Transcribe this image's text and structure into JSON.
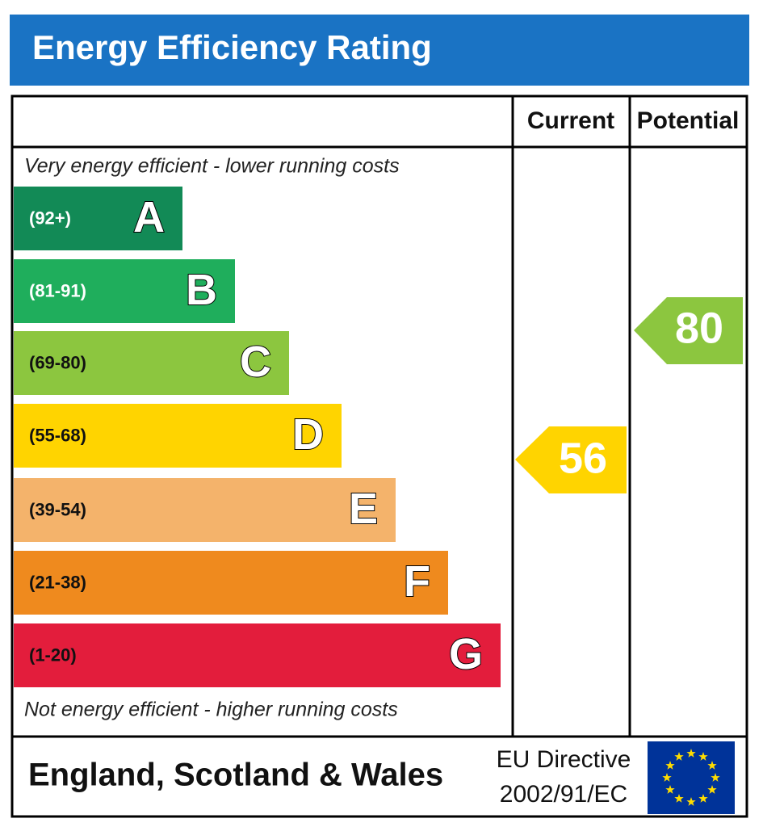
{
  "title": "Energy Efficiency Rating",
  "columns": [
    "Current",
    "Potential"
  ],
  "top_note": "Very energy efficient - lower running costs",
  "bottom_note": "Not energy efficient - higher running costs",
  "bands": [
    {
      "range": "(92+)",
      "letter": "A",
      "color": "#128a56"
    },
    {
      "range": "(81-91)",
      "letter": "B",
      "color": "#1fae5c"
    },
    {
      "range": "(69-80)",
      "letter": "C",
      "color": "#8cc63f"
    },
    {
      "range": "(55-68)",
      "letter": "D",
      "color": "#ffd400"
    },
    {
      "range": "(39-54)",
      "letter": "E",
      "color": "#f4b36b"
    },
    {
      "range": "(21-38)",
      "letter": "F",
      "color": "#ef8a1e"
    },
    {
      "range": "(1-20)",
      "letter": "G",
      "color": "#e31d3c"
    }
  ],
  "current": {
    "value": 56,
    "color": "#ffd400"
  },
  "potential": {
    "value": 80,
    "color": "#8cc63f"
  },
  "footer": {
    "region": "England, Scotland & Wales",
    "directive_line1": "EU Directive",
    "directive_line2": "2002/91/EC"
  }
}
